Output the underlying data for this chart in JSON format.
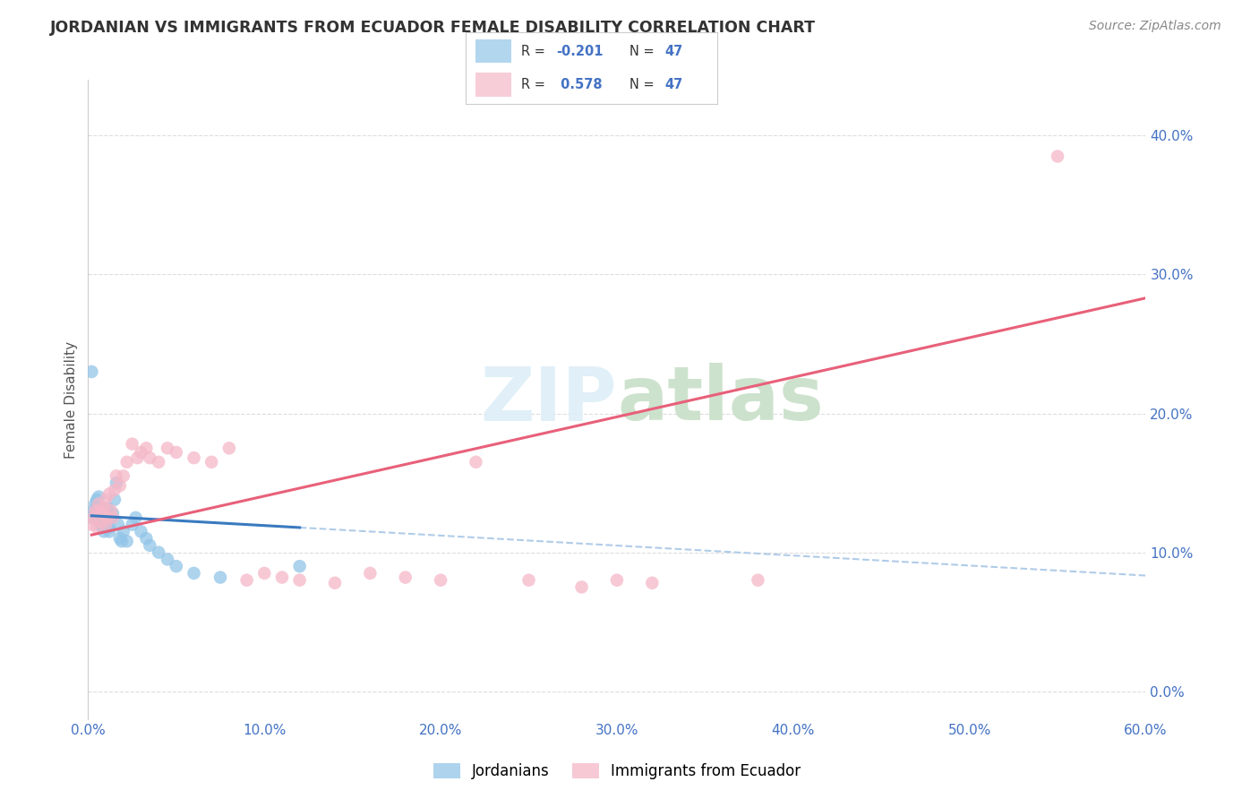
{
  "title": "JORDANIAN VS IMMIGRANTS FROM ECUADOR FEMALE DISABILITY CORRELATION CHART",
  "source": "Source: ZipAtlas.com",
  "ylabel": "Female Disability",
  "xlim": [
    0.0,
    0.6
  ],
  "ylim": [
    -0.02,
    0.44
  ],
  "yticks": [
    0.0,
    0.1,
    0.2,
    0.3,
    0.4
  ],
  "xticks": [
    0.0,
    0.1,
    0.2,
    0.3,
    0.4,
    0.5,
    0.6
  ],
  "xtick_labels": [
    "0.0%",
    "10.0%",
    "20.0%",
    "30.0%",
    "40.0%",
    "50.0%",
    "60.0%"
  ],
  "ytick_labels": [
    "0.0%",
    "10.0%",
    "20.0%",
    "30.0%",
    "40.0%"
  ],
  "label_jordanians": "Jordanians",
  "label_ecuador": "Immigrants from Ecuador",
  "blue_color": "#92c5e8",
  "pink_color": "#f5b8c8",
  "trendline_blue_color": "#3a7abf",
  "trendline_pink_color": "#e8607a",
  "trendline_blue_dashed_color": "#b0cce8",
  "background_color": "#ffffff",
  "grid_color": "#dddddd",
  "jordanians_x": [
    0.002,
    0.003,
    0.004,
    0.004,
    0.005,
    0.005,
    0.005,
    0.006,
    0.006,
    0.006,
    0.006,
    0.007,
    0.007,
    0.007,
    0.008,
    0.008,
    0.008,
    0.009,
    0.009,
    0.01,
    0.01,
    0.01,
    0.011,
    0.011,
    0.012,
    0.012,
    0.013,
    0.014,
    0.015,
    0.016,
    0.017,
    0.018,
    0.019,
    0.02,
    0.022,
    0.025,
    0.027,
    0.03,
    0.033,
    0.035,
    0.04,
    0.045,
    0.05,
    0.06,
    0.075,
    0.12,
    0.002
  ],
  "jordanians_y": [
    0.125,
    0.13,
    0.135,
    0.128,
    0.132,
    0.138,
    0.125,
    0.14,
    0.135,
    0.128,
    0.122,
    0.13,
    0.125,
    0.12,
    0.132,
    0.128,
    0.118,
    0.125,
    0.115,
    0.13,
    0.128,
    0.12,
    0.132,
    0.122,
    0.118,
    0.115,
    0.125,
    0.128,
    0.138,
    0.15,
    0.12,
    0.11,
    0.108,
    0.115,
    0.108,
    0.12,
    0.125,
    0.115,
    0.11,
    0.105,
    0.1,
    0.095,
    0.09,
    0.085,
    0.082,
    0.09,
    0.23
  ],
  "ecuador_x": [
    0.002,
    0.003,
    0.004,
    0.005,
    0.005,
    0.006,
    0.007,
    0.008,
    0.008,
    0.009,
    0.01,
    0.01,
    0.011,
    0.012,
    0.013,
    0.014,
    0.015,
    0.016,
    0.018,
    0.02,
    0.022,
    0.025,
    0.028,
    0.03,
    0.033,
    0.035,
    0.04,
    0.045,
    0.05,
    0.06,
    0.07,
    0.08,
    0.09,
    0.1,
    0.11,
    0.12,
    0.14,
    0.16,
    0.18,
    0.2,
    0.22,
    0.25,
    0.28,
    0.3,
    0.32,
    0.38,
    0.55
  ],
  "ecuador_y": [
    0.12,
    0.125,
    0.13,
    0.128,
    0.118,
    0.135,
    0.13,
    0.128,
    0.122,
    0.132,
    0.12,
    0.138,
    0.125,
    0.142,
    0.13,
    0.125,
    0.145,
    0.155,
    0.148,
    0.155,
    0.165,
    0.178,
    0.168,
    0.172,
    0.175,
    0.168,
    0.165,
    0.175,
    0.172,
    0.168,
    0.165,
    0.175,
    0.08,
    0.085,
    0.082,
    0.08,
    0.078,
    0.085,
    0.082,
    0.08,
    0.165,
    0.08,
    0.075,
    0.08,
    0.078,
    0.08,
    0.385
  ],
  "blue_trendline_x_start": 0.002,
  "blue_trendline_x_solid_end": 0.12,
  "blue_trendline_x_dashed_end": 0.6,
  "pink_trendline_x_start": 0.002,
  "pink_trendline_x_end": 0.6,
  "blue_R": -0.201,
  "pink_R": 0.578,
  "blue_intercept": 0.1265,
  "blue_slope": -0.072,
  "pink_intercept": 0.112,
  "pink_slope": 0.285
}
